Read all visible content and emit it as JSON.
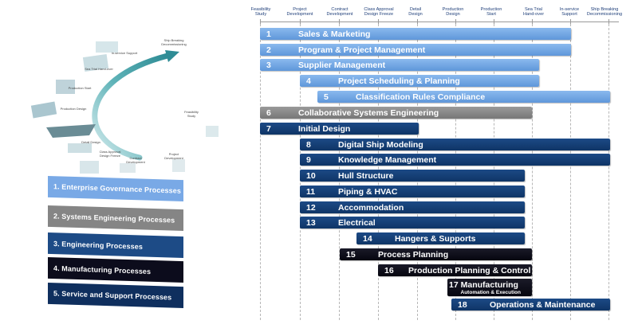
{
  "phases": [
    "Feasibility\nStudy",
    "Project\nDevelopment",
    "Contract\nDevelopment",
    "Class Approval\nDesign Freeze",
    "Detail\nDesign",
    "Production\nDesign",
    "Production\nStart",
    "Sea Trial\nHand-over",
    "In-service\nSupport",
    "Ship Breaking\nDecommissioning"
  ],
  "curve_labels": [
    "Ship Breaking\nDecommissioning",
    "In-service Support",
    "Sea Trial Hand-over",
    "Production Start",
    "Production Design",
    "Detail Design",
    "Class Approval\nDesign Freeze",
    "Contract\nDevelopment",
    "Project\nDevelopment",
    "Feasibility\nStudy"
  ],
  "categories": [
    {
      "label": "1. Enterprise Governance Processes",
      "color": "#79a9e6"
    },
    {
      "label": "2. Systems Engineering Processes",
      "color": "#858585"
    },
    {
      "label": "3. Engineering Processes",
      "color": "#1d4b86"
    },
    {
      "label": "4. Manufacturing Processes",
      "color": "#0c0c1c"
    },
    {
      "label": "5. Service and Support Processes",
      "color": "#0f2f5e"
    }
  ],
  "processes": [
    {
      "num": "1",
      "label": "Sales & Marketing",
      "category": 1
    },
    {
      "num": "2",
      "label": "Program & Project Management",
      "category": 1
    },
    {
      "num": "3",
      "label": "Supplier Management",
      "category": 1
    },
    {
      "num": "4",
      "label": "Project  Scheduling & Planning",
      "category": 1
    },
    {
      "num": "5",
      "label": "Classification Rules Compliance",
      "category": 1
    },
    {
      "num": "6",
      "label": "Collaborative Systems Engineering",
      "category": 2
    },
    {
      "num": "7",
      "label": "Initial Design",
      "category": 3
    },
    {
      "num": "8",
      "label": "Digital Ship Modeling",
      "category": 3
    },
    {
      "num": "9",
      "label": "Knowledge Management",
      "category": 3
    },
    {
      "num": "10",
      "label": "Hull Structure",
      "category": 3
    },
    {
      "num": "11",
      "label": "Piping & HVAC",
      "category": 3
    },
    {
      "num": "12",
      "label": "Accommodation",
      "category": 3
    },
    {
      "num": "13",
      "label": "Electrical",
      "category": 3
    },
    {
      "num": "14",
      "label": "Hangers & Supports",
      "category": 3
    },
    {
      "num": "15",
      "label": "Process Planning",
      "category": 4
    },
    {
      "num": "16",
      "label": "Production Planning & Control",
      "category": 4
    },
    {
      "num": "17",
      "label": "Manufacturing",
      "sublabel": "Automation & Execution",
      "category": 4
    },
    {
      "num": "18",
      "label": "Operations & Maintenance",
      "category": 5
    }
  ]
}
